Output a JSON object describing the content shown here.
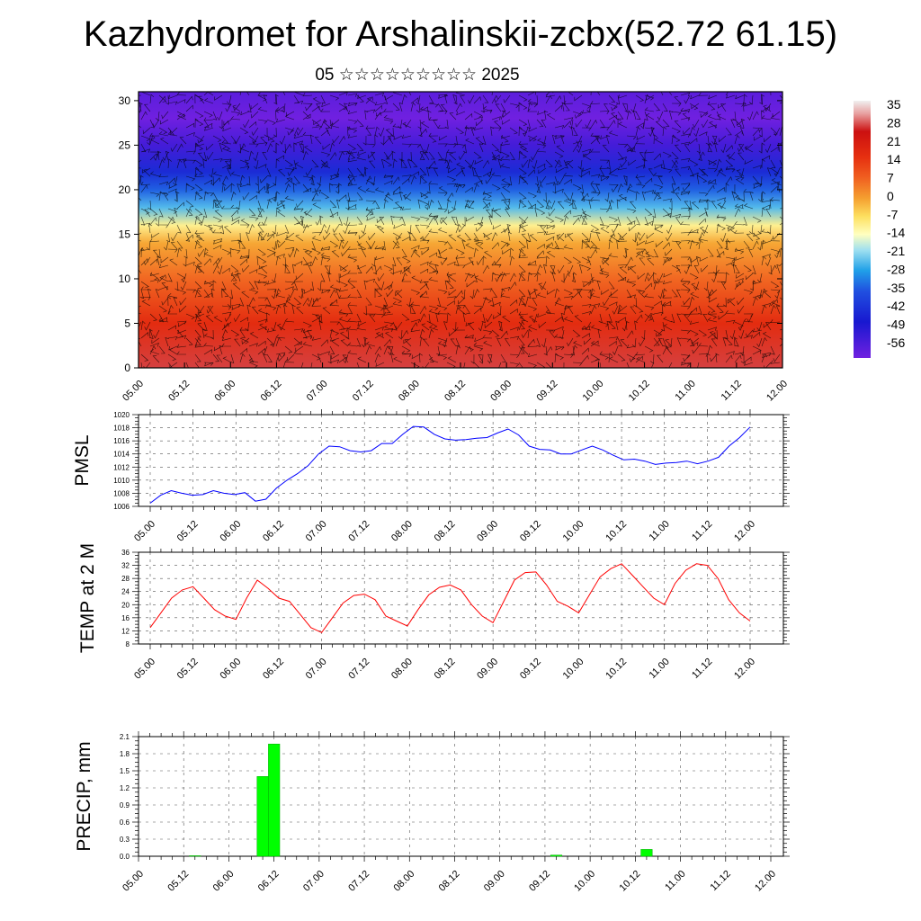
{
  "title": "Kazhydromet for Arshalinskii-zcbx(52.72 61.15)",
  "subtitle": "05 ☆☆☆☆☆☆☆☆☆ 2025",
  "colors": {
    "pmsl_line": "#0000ff",
    "temp_line": "#ff0000",
    "precip_bar": "#00ff00",
    "grid": "#555555"
  },
  "chart_data": [
    {
      "id": "cross-section",
      "type": "heatmap",
      "title": "",
      "xlabel": "",
      "ylabel": "",
      "x_ticks": [
        "05.00",
        "05.12",
        "06.00",
        "06.12",
        "07.00",
        "07.12",
        "08.00",
        "08.12",
        "09.00",
        "09.12",
        "10.00",
        "10.12",
        "11.00",
        "11.12",
        "12.00"
      ],
      "y_ticks": [
        0,
        5,
        10,
        15,
        20,
        25,
        30
      ],
      "ylim": [
        0,
        31
      ],
      "colorbar": {
        "labels": [
          "35",
          "28",
          "21",
          "14",
          "7",
          "0",
          "-7",
          "-14",
          "-21",
          "-28",
          "-35",
          "-42",
          "-49",
          "-56"
        ],
        "range": [
          -60,
          38
        ]
      },
      "profile": {
        "levels": [
          0,
          5,
          10,
          14,
          16,
          18,
          20,
          22,
          25,
          28,
          31
        ],
        "temperatures": [
          34,
          25,
          13,
          4,
          -8,
          -26,
          -38,
          -48,
          -56,
          -60,
          -58
        ]
      },
      "wind_barbs": true
    },
    {
      "id": "pmsl",
      "type": "line",
      "ylabel": "PMSL",
      "ylim": [
        1006,
        1020
      ],
      "y_ticks": [
        1006,
        1008,
        1010,
        1012,
        1014,
        1016,
        1018,
        1020
      ],
      "x_ticks": [
        "05.00",
        "05.12",
        "06.00",
        "06.12",
        "07.00",
        "07.12",
        "08.00",
        "08.12",
        "09.00",
        "09.12",
        "10.00",
        "10.12",
        "11.00",
        "11.12",
        "12.00"
      ],
      "grid": true,
      "series": [
        {
          "values": [
            1006.5,
            1007.7,
            1008.4,
            1008.0,
            1007.7,
            1007.8,
            1008.4,
            1008.0,
            1007.8,
            1008.1,
            1006.8,
            1007.1,
            1008.8,
            1010.0,
            1011.0,
            1012.2,
            1014.0,
            1015.2,
            1015.1,
            1014.5,
            1014.3,
            1014.5,
            1015.6,
            1015.6,
            1017.0,
            1018.2,
            1018.1,
            1017.0,
            1016.3,
            1016.1,
            1016.2,
            1016.4,
            1016.5,
            1017.2,
            1017.8,
            1016.9,
            1015.2,
            1014.7,
            1014.6,
            1014.0,
            1014.0,
            1014.6,
            1015.2,
            1014.6,
            1013.8,
            1013.1,
            1013.2,
            1012.9,
            1012.4,
            1012.6,
            1012.7,
            1012.9,
            1012.5,
            1012.9,
            1013.5,
            1015.2,
            1016.5,
            1018.1
          ]
        }
      ]
    },
    {
      "id": "temp2m",
      "type": "line",
      "ylabel": "TEMP at 2 M",
      "ylim": [
        8,
        36
      ],
      "y_ticks": [
        8,
        12,
        16,
        20,
        24,
        28,
        32,
        36
      ],
      "x_ticks": [
        "05.00",
        "05.12",
        "06.00",
        "06.12",
        "07.00",
        "07.12",
        "08.00",
        "08.12",
        "09.00",
        "09.12",
        "10.00",
        "10.12",
        "11.00",
        "11.12",
        "12.00"
      ],
      "grid": true,
      "series": [
        {
          "values": [
            13.0,
            17.5,
            22.0,
            24.5,
            25.5,
            22.0,
            18.5,
            16.5,
            15.5,
            22.0,
            27.5,
            25.0,
            22.0,
            21.0,
            17.0,
            13.0,
            11.5,
            16.0,
            20.5,
            22.8,
            23.2,
            21.5,
            16.5,
            15.0,
            13.5,
            18.5,
            23.0,
            25.3,
            26.0,
            24.5,
            20.0,
            16.5,
            14.5,
            21.0,
            27.5,
            29.8,
            30.0,
            26.0,
            21.0,
            19.5,
            17.5,
            23.0,
            28.5,
            31.0,
            32.5,
            29.0,
            25.5,
            22.0,
            20.0,
            26.5,
            30.5,
            32.5,
            32.0,
            28.0,
            21.5,
            17.5,
            15.0
          ]
        }
      ]
    },
    {
      "id": "precip",
      "type": "bar",
      "ylabel": "PRECIP, mm",
      "ylim": [
        0,
        2.1
      ],
      "y_ticks": [
        "0.0",
        "0.3",
        "0.6",
        "0.9",
        "1.2",
        "1.5",
        "1.8",
        "2.1"
      ],
      "x_ticks": [
        "05.00",
        "05.12",
        "06.00",
        "06.12",
        "07.00",
        "07.12",
        "08.00",
        "08.12",
        "09.00",
        "09.12",
        "10.00",
        "10.12",
        "11.00",
        "11.12",
        "12.00"
      ],
      "grid": true,
      "bars": [
        {
          "hour": 15,
          "value": 0.01
        },
        {
          "hour": 33,
          "value": 1.4
        },
        {
          "hour": 36,
          "value": 1.97
        },
        {
          "hour": 111,
          "value": 0.02
        },
        {
          "hour": 135,
          "value": 0.12
        }
      ]
    }
  ]
}
